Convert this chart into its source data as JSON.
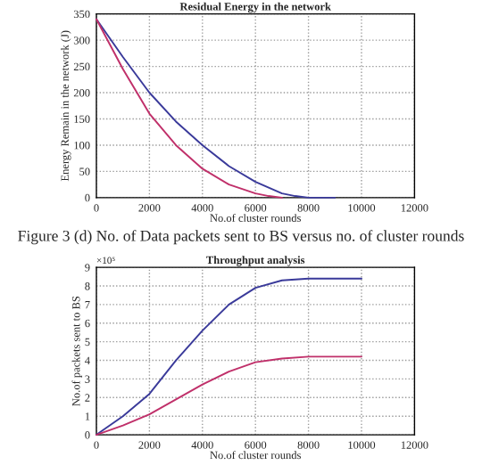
{
  "chart_data": [
    {
      "type": "line",
      "title": "Residual Energy in the network",
      "xlabel": "No.of cluster rounds",
      "ylabel": "Energy Remain in the network (J)",
      "xlim": [
        0,
        12000
      ],
      "xticks": [
        0,
        2000,
        4000,
        6000,
        8000,
        10000,
        12000
      ],
      "ylim": [
        0,
        350
      ],
      "yticks": [
        0,
        50,
        100,
        150,
        200,
        250,
        300,
        350
      ],
      "grid": true,
      "legend": false,
      "series": [
        {
          "color": "#3a3a9a",
          "x": [
            0,
            1000,
            2000,
            3000,
            4000,
            5000,
            6000,
            7000,
            7500,
            8000,
            9000
          ],
          "values": [
            340,
            268,
            200,
            145,
            100,
            60,
            30,
            8,
            3,
            0,
            0
          ]
        },
        {
          "color": "#c0306a",
          "x": [
            0,
            1000,
            2000,
            3000,
            4000,
            5000,
            6000,
            6500,
            7000
          ],
          "values": [
            340,
            245,
            160,
            100,
            55,
            25,
            8,
            3,
            0
          ]
        }
      ]
    },
    {
      "type": "line",
      "title": "Throughput analysis",
      "xlabel": "No.of cluster rounds",
      "ylabel": "No.of packets sent to BS",
      "xlim": [
        0,
        12000
      ],
      "xticks": [
        0,
        2000,
        4000,
        6000,
        8000,
        10000,
        12000
      ],
      "ylim": [
        0,
        9
      ],
      "yticks": [
        0,
        1,
        2,
        3,
        4,
        5,
        6,
        7,
        8,
        9
      ],
      "grid": true,
      "legend": false,
      "annotations": [
        "×10⁵",
        "Figure 3 (d) No. of Data packets sent to BS versus no. of cluster rounds"
      ],
      "series": [
        {
          "color": "#3a3a9a",
          "x": [
            0,
            1000,
            2000,
            3000,
            4000,
            5000,
            6000,
            7000,
            8000,
            9000,
            10000
          ],
          "values": [
            0,
            1.0,
            2.2,
            4.0,
            5.6,
            7.0,
            7.9,
            8.3,
            8.4,
            8.4,
            8.4
          ]
        },
        {
          "color": "#c0306a",
          "x": [
            0,
            1000,
            2000,
            3000,
            4000,
            5000,
            6000,
            7000,
            8000,
            9000,
            10000
          ],
          "values": [
            0,
            0.5,
            1.1,
            1.9,
            2.7,
            3.4,
            3.9,
            4.1,
            4.2,
            4.2,
            4.2
          ]
        }
      ]
    }
  ]
}
